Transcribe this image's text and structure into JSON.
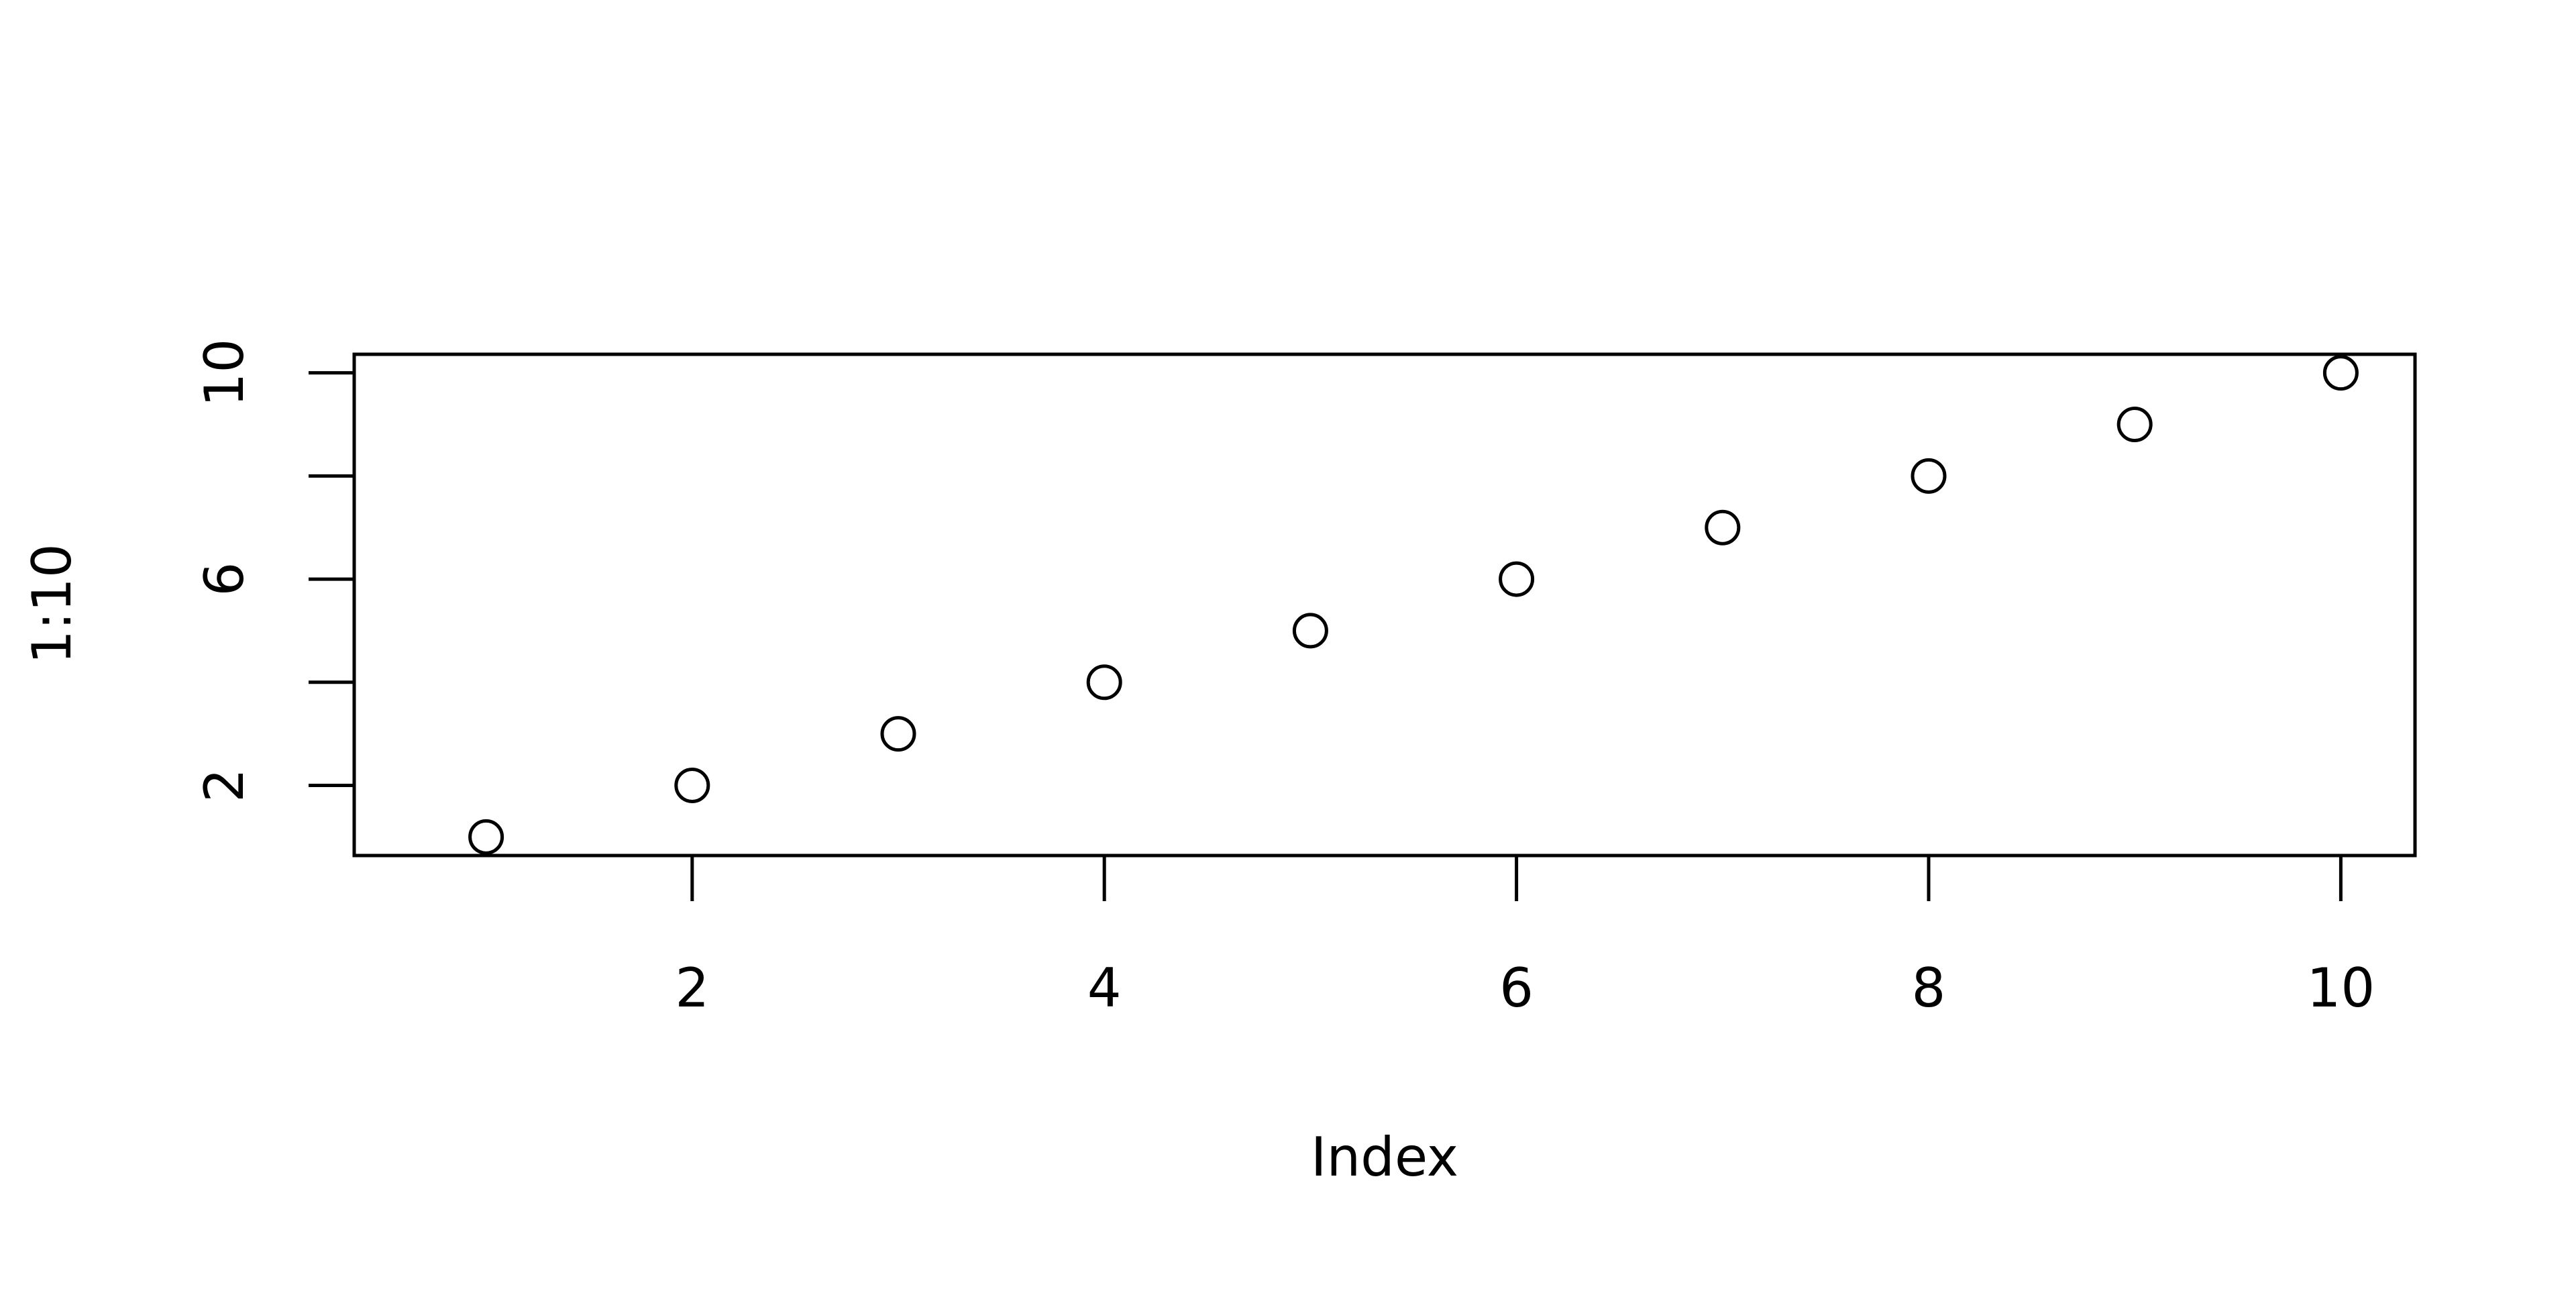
{
  "chart_data": {
    "type": "scatter",
    "title": "",
    "xlabel": "Index",
    "ylabel": "1:10",
    "x": [
      1,
      2,
      3,
      4,
      5,
      6,
      7,
      8,
      9,
      10
    ],
    "y": [
      1,
      2,
      3,
      4,
      5,
      6,
      7,
      8,
      9,
      10
    ],
    "xlim": [
      0.36,
      10.36
    ],
    "ylim": [
      0.64,
      10.36
    ],
    "x_ticks": [
      2,
      4,
      6,
      8,
      10
    ],
    "x_tick_labels": [
      "2",
      "4",
      "6",
      "8",
      "10"
    ],
    "y_ticks": [
      2,
      4,
      6,
      8,
      10
    ],
    "y_tick_labels": [
      "2",
      "",
      "6",
      "",
      "10"
    ],
    "grid": false,
    "marker": "open-circle",
    "colors": {
      "axis": "#000000",
      "marker": "#000000",
      "background": "#ffffff"
    }
  }
}
